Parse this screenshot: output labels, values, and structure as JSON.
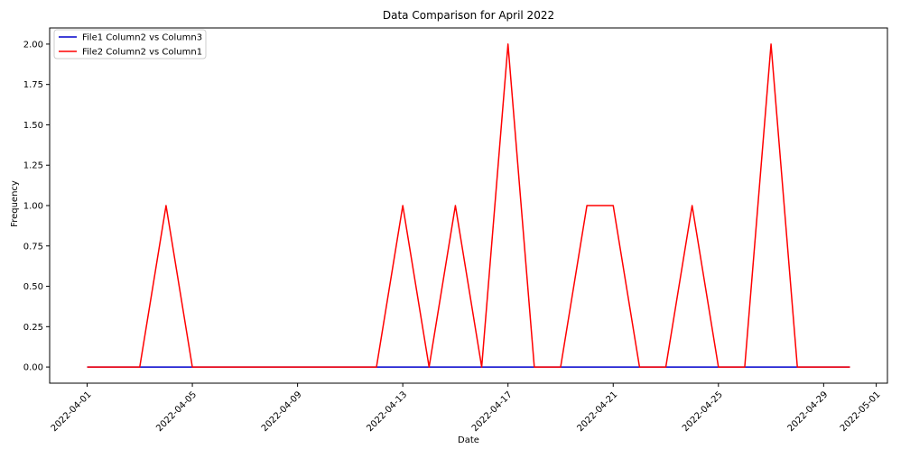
{
  "chart_data": {
    "type": "line",
    "title": "Data Comparison for April 2022",
    "xlabel": "Date",
    "ylabel": "Frequency",
    "x": [
      "2022-04-01",
      "2022-04-02",
      "2022-04-03",
      "2022-04-04",
      "2022-04-05",
      "2022-04-06",
      "2022-04-07",
      "2022-04-08",
      "2022-04-09",
      "2022-04-10",
      "2022-04-11",
      "2022-04-12",
      "2022-04-13",
      "2022-04-14",
      "2022-04-15",
      "2022-04-16",
      "2022-04-17",
      "2022-04-18",
      "2022-04-19",
      "2022-04-20",
      "2022-04-21",
      "2022-04-22",
      "2022-04-23",
      "2022-04-24",
      "2022-04-25",
      "2022-04-26",
      "2022-04-27",
      "2022-04-28",
      "2022-04-29",
      "2022-04-30"
    ],
    "series": [
      {
        "name": "File1 Column2 vs Column3",
        "color": "#0000cc",
        "values": [
          0,
          0,
          0,
          0,
          0,
          0,
          0,
          0,
          0,
          0,
          0,
          0,
          0,
          0,
          0,
          0,
          0,
          0,
          0,
          0,
          0,
          0,
          0,
          0,
          0,
          0,
          0,
          0,
          0,
          0
        ]
      },
      {
        "name": "File2 Column2 vs Column1",
        "color": "#ff0000",
        "values": [
          0,
          0,
          0,
          1,
          0,
          0,
          0,
          0,
          0,
          0,
          0,
          0,
          1,
          0,
          1,
          0,
          2,
          0,
          0,
          1,
          1,
          0,
          0,
          1,
          0,
          0,
          2,
          0,
          0,
          0
        ]
      }
    ],
    "x_ticks": [
      "2022-04-01",
      "2022-04-05",
      "2022-04-09",
      "2022-04-13",
      "2022-04-17",
      "2022-04-21",
      "2022-04-25",
      "2022-04-29",
      "2022-05-01"
    ],
    "x_tick_labels": [
      "2022-04-01",
      "2022-04-05",
      "2022-04-09",
      "2022-04-13",
      "2022-04-17",
      "2022-04-21",
      "2022-04-25",
      "2022-04-29",
      "2022-05-01"
    ],
    "y_ticks": [
      0,
      0.25,
      0.5,
      0.75,
      1.0,
      1.25,
      1.5,
      1.75,
      2.0
    ],
    "y_tick_labels": [
      "0.00",
      "0.25",
      "0.50",
      "0.75",
      "1.00",
      "1.25",
      "1.50",
      "1.75",
      "2.00"
    ],
    "xlim": [
      "2022-03-30T13:48:00",
      "2022-05-01T10:12:00"
    ],
    "ylim": [
      -0.1,
      2.1
    ],
    "grid": false,
    "legend_position": "top-left"
  }
}
